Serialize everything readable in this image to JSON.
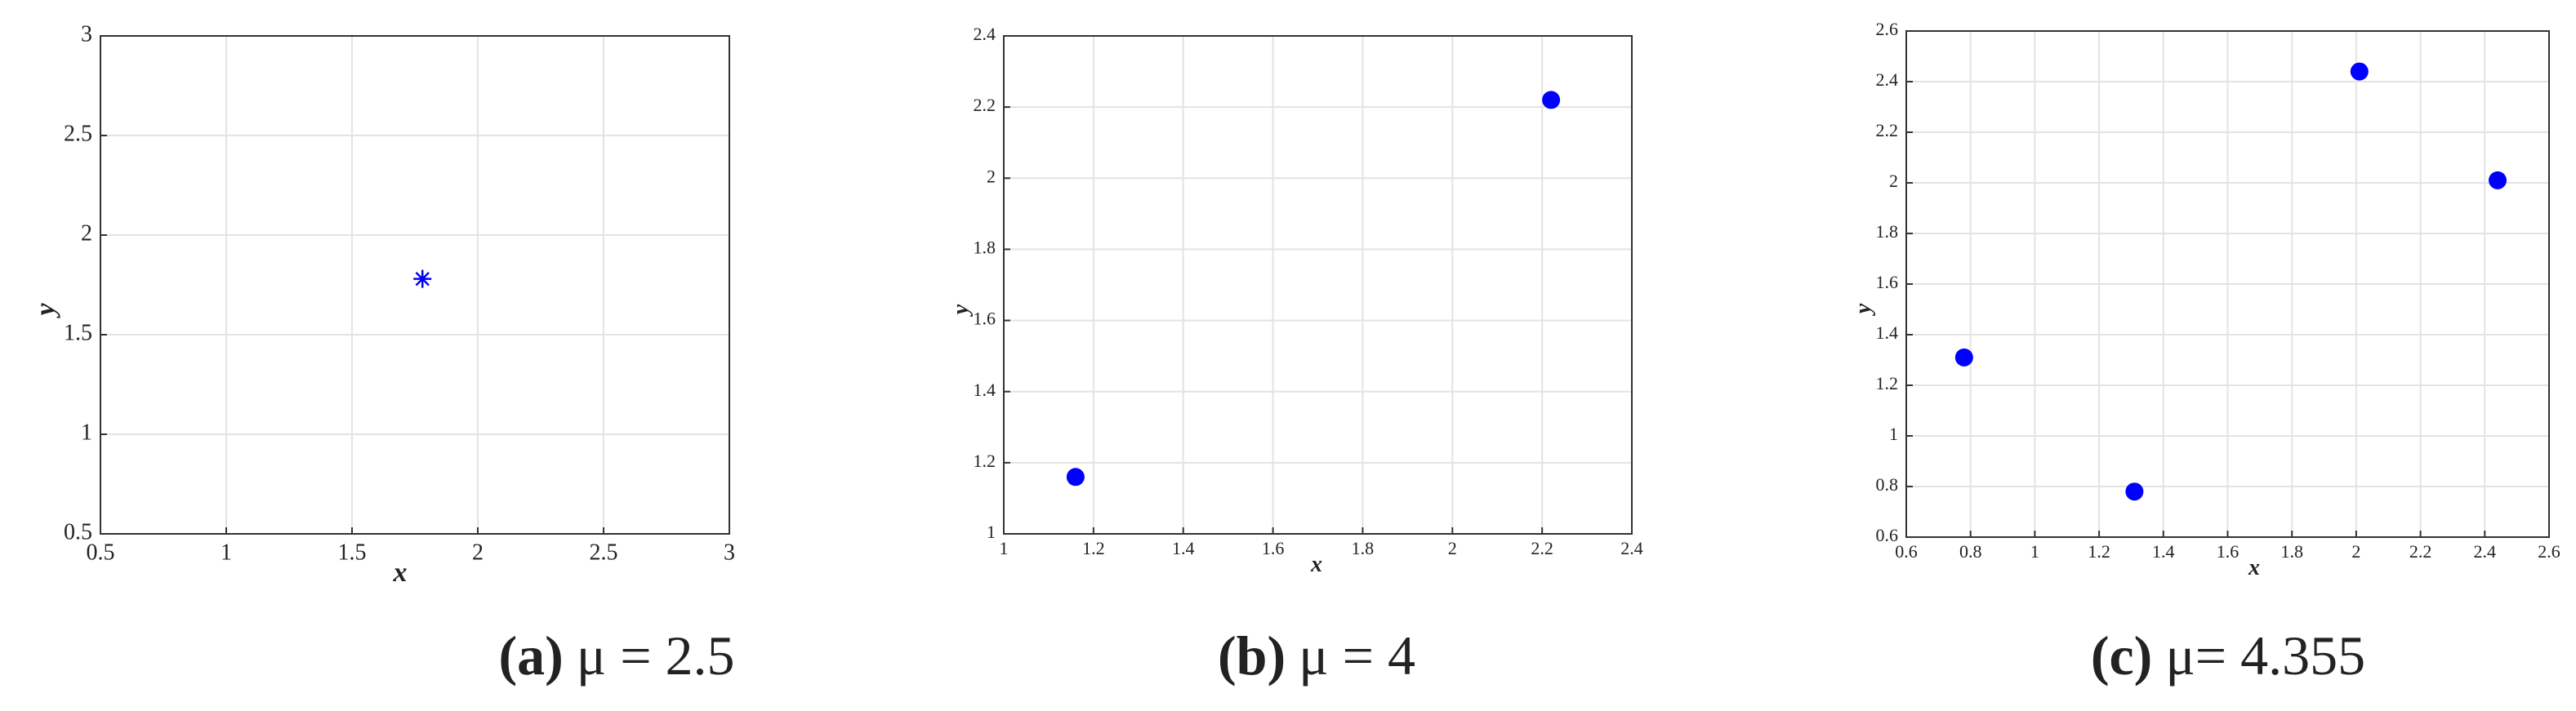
{
  "chart_data": [
    {
      "type": "scatter",
      "marker": "asterisk",
      "color": "#0000ff",
      "grid": true,
      "xlabel": "x",
      "ylabel": "y",
      "x": [
        1.78
      ],
      "y": [
        1.78
      ],
      "xlim": [
        0.5,
        3
      ],
      "ylim": [
        0.5,
        3
      ],
      "xticks": [
        0.5,
        1,
        1.5,
        2,
        2.5,
        3
      ],
      "yticks": [
        0.5,
        1,
        1.5,
        2,
        2.5,
        3
      ],
      "caption_label": "(a)",
      "caption": "μ = 2.5"
    },
    {
      "type": "scatter",
      "marker": "circle",
      "color": "#0000ff",
      "grid": true,
      "xlabel": "x",
      "ylabel": "y",
      "x": [
        1.16,
        2.22
      ],
      "y": [
        1.16,
        2.22
      ],
      "xlim": [
        1,
        2.4
      ],
      "ylim": [
        1,
        2.4
      ],
      "xticks": [
        1,
        1.2,
        1.4,
        1.6,
        1.8,
        2,
        2.2,
        2.4
      ],
      "yticks": [
        1,
        1.2,
        1.4,
        1.6,
        1.8,
        2,
        2.2,
        2.4
      ],
      "caption_label": "(b)",
      "caption": "μ = 4"
    },
    {
      "type": "scatter",
      "marker": "circle",
      "color": "#0000ff",
      "grid": true,
      "xlabel": "x",
      "ylabel": "y",
      "x": [
        0.78,
        1.31,
        2.01,
        2.44
      ],
      "y": [
        1.31,
        0.78,
        2.44,
        2.01
      ],
      "xlim": [
        0.6,
        2.6
      ],
      "ylim": [
        0.6,
        2.6
      ],
      "xticks": [
        0.6,
        0.8,
        1,
        1.2,
        1.4,
        1.6,
        1.8,
        2,
        2.2,
        2.4,
        2.6
      ],
      "yticks": [
        0.6,
        0.8,
        1,
        1.2,
        1.4,
        1.6,
        1.8,
        2,
        2.2,
        2.4,
        2.6
      ],
      "caption_label": "(c)",
      "caption": "μ= 4.355"
    }
  ]
}
